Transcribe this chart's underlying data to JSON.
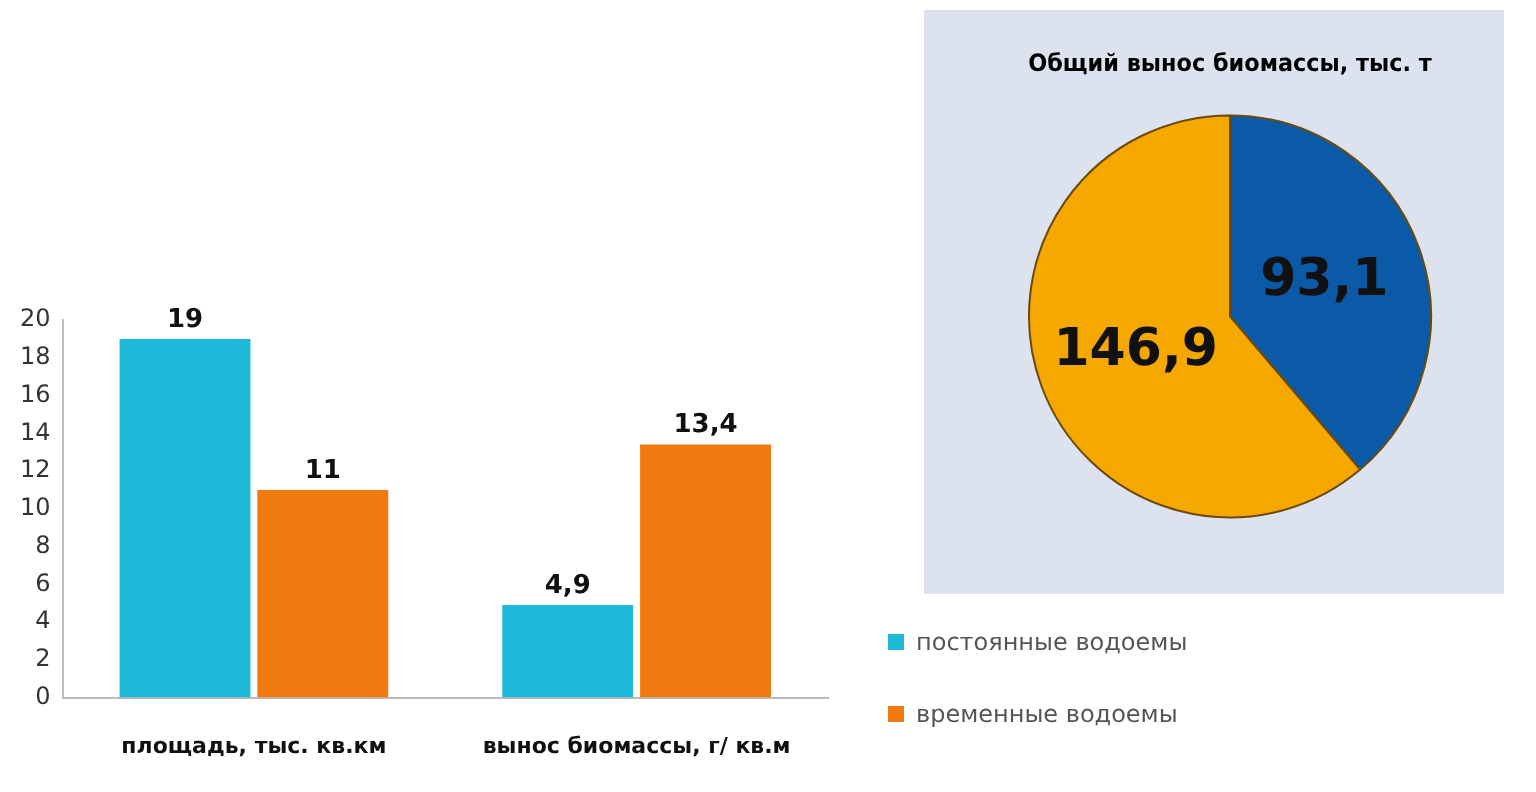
{
  "chart_data": [
    {
      "type": "bar",
      "categories": [
        "площадь, тыс. кв.км",
        "вынос биомассы, г/ кв.м"
      ],
      "series": [
        {
          "name": "постоянные водоемы",
          "color": "#1fb8d8",
          "values": [
            19,
            4.9
          ],
          "value_labels": [
            "19",
            "4,9"
          ]
        },
        {
          "name": "временные водоемы",
          "color": "#f07a10",
          "values": [
            11,
            13.4
          ],
          "value_labels": [
            "11",
            "13,4"
          ]
        }
      ],
      "ylim": [
        0,
        20
      ],
      "yticks": [
        0,
        2,
        4,
        6,
        8,
        10,
        12,
        14,
        16,
        18,
        20
      ],
      "grid": false,
      "legend": "bottom right"
    },
    {
      "type": "pie",
      "title": "Общий вынос биомассы, тыс. т",
      "categories": [
        null,
        null
      ],
      "values": [
        93.1,
        146.9
      ],
      "colors": [
        "#0a5aa8",
        "#f5a800"
      ],
      "value_labels": [
        "93,1",
        "146,9"
      ]
    }
  ]
}
